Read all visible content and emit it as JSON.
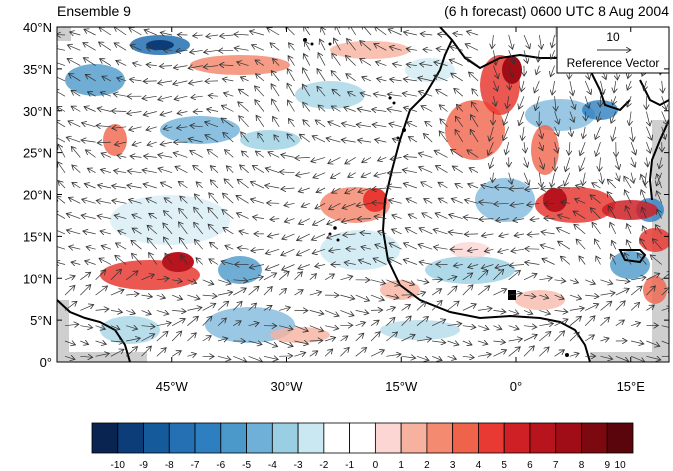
{
  "header": {
    "left_title": "Ensemble 9",
    "right_title": "(6 h forecast) 0600 UTC 8 Aug 2004"
  },
  "reference_vector": {
    "magnitude_label": "10",
    "caption": "Reference Vector"
  },
  "map": {
    "lat_ticks": [
      "0°",
      "5°N",
      "10°N",
      "15°N",
      "20°N",
      "25°N",
      "30°N",
      "35°N",
      "40°N"
    ],
    "lon_ticks": [
      "45°W",
      "30°W",
      "15°W",
      "0°",
      "15°E"
    ],
    "lat_range": [
      0,
      40
    ],
    "lon_range": [
      -60,
      20
    ],
    "land_color": "#cccccc",
    "coast_color": "#000000"
  },
  "colorbar": {
    "labels": [
      "-10",
      "-9",
      "-8",
      "-7",
      "-6",
      "-5",
      "-4",
      "-3",
      "-2",
      "-1",
      "0",
      "1",
      "2",
      "3",
      "4",
      "5",
      "6",
      "7",
      "8",
      "9",
      "10"
    ],
    "colors": [
      "#0a2452",
      "#0d3d78",
      "#155a9a",
      "#2470b2",
      "#2e7fc0",
      "#4b98cb",
      "#6fb0d8",
      "#9acfe3",
      "#c9e8f1",
      "#ffffff",
      "#ffffff",
      "#fbd6d3",
      "#f7b19f",
      "#f48a70",
      "#f0634b",
      "#e83a32",
      "#cf2026",
      "#b8141e",
      "#a00d16",
      "#7c0810",
      "#5a050b"
    ]
  }
}
